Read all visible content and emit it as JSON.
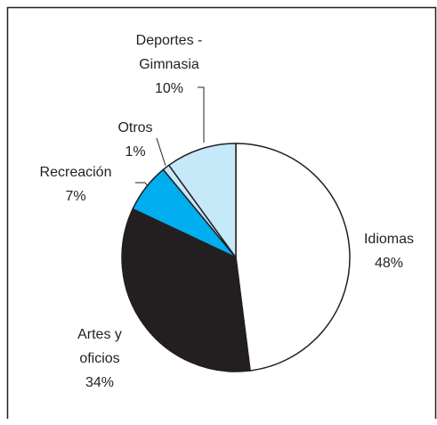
{
  "chart_data": {
    "type": "pie",
    "categories": [
      "Idiomas",
      "Artes y oficios",
      "Recreación",
      "Otros",
      "Deportes - Gimnasia"
    ],
    "values": [
      48,
      34,
      7,
      1,
      10
    ],
    "value_labels": [
      "48%",
      "34%",
      "7%",
      "1%",
      "10%"
    ],
    "colors": [
      "#ffffff",
      "#231f20",
      "#00aeef",
      "#c6e9f9",
      "#c6e9f9"
    ]
  }
}
